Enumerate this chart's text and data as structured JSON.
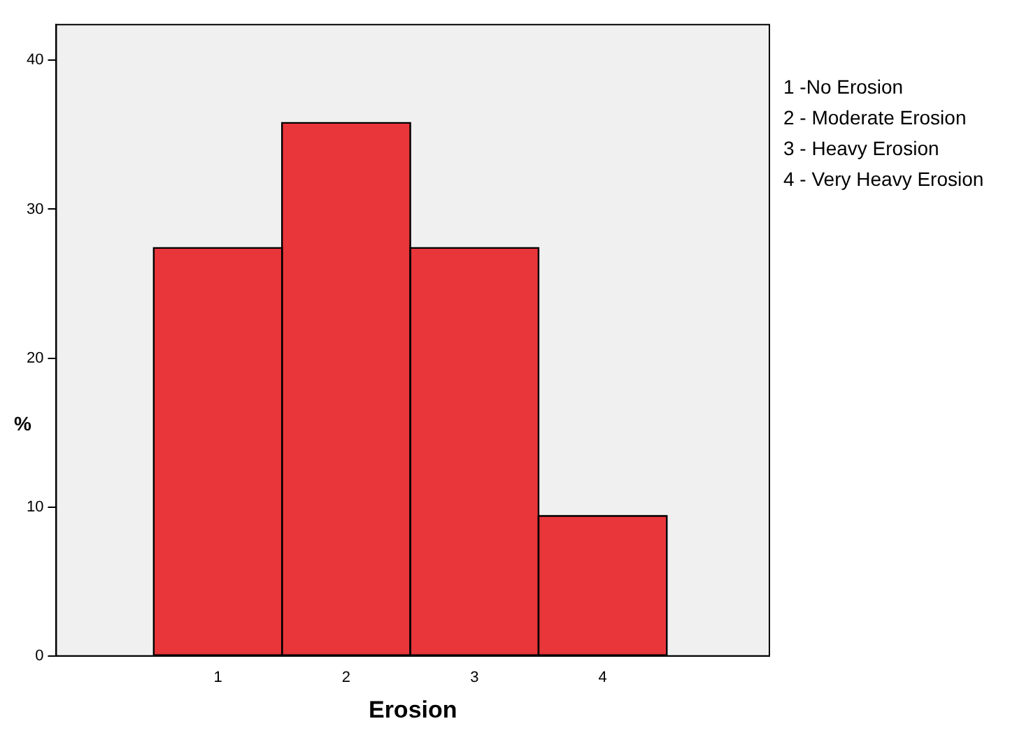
{
  "chart_data": {
    "type": "histogram",
    "xlabel": "Erosion",
    "ylabel": "%",
    "bins": [
      0.5,
      1.5,
      2.5,
      3.5,
      4.5
    ],
    "values": [
      27.4,
      35.8,
      27.4,
      9.4
    ],
    "color": "#e8363a",
    "xlim": [
      -0.26,
      5.3
    ],
    "xticks": [
      1,
      2,
      3,
      4
    ],
    "ylim": [
      0,
      42.4
    ],
    "yticks": [
      0,
      10,
      20,
      30,
      40
    ],
    "grid": false,
    "legend": false,
    "annotations": [
      "1 -No Erosion",
      "2 - Moderate Erosion",
      "3 - Heavy Erosion",
      "4 - Very Heavy Erosion"
    ]
  }
}
